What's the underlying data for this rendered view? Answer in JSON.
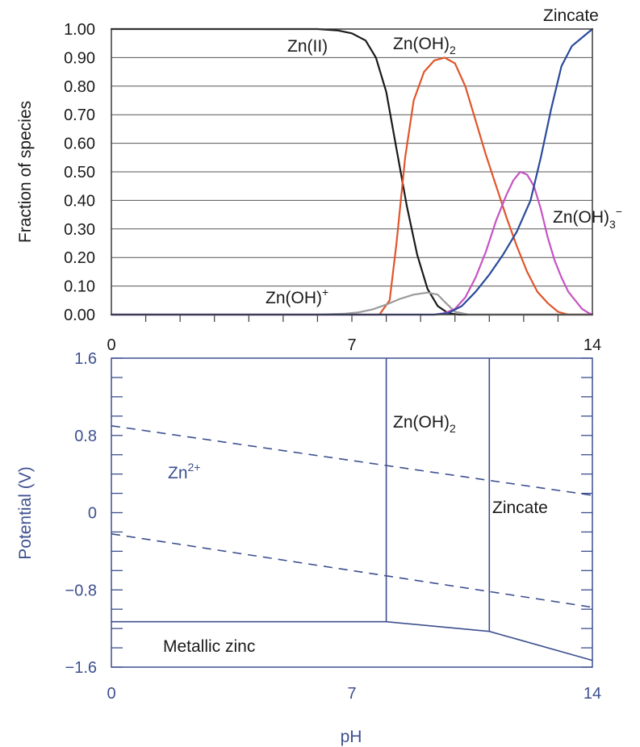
{
  "chart_data": [
    {
      "type": "line",
      "ylabel": "Fraction of species",
      "xlim": [
        0,
        14
      ],
      "ylim": [
        0,
        1
      ],
      "x_ticks": [
        "0",
        "7",
        "14"
      ],
      "y_ticks": [
        "0.00",
        "0.10",
        "0.20",
        "0.30",
        "0.40",
        "0.50",
        "0.60",
        "0.70",
        "0.80",
        "0.90",
        "1.00"
      ],
      "grid": true,
      "series": [
        {
          "name": "Zn(II)",
          "color": "#1a1a1a",
          "x": [
            0,
            5,
            6,
            6.6,
            7,
            7.4,
            7.7,
            8,
            8.3,
            8.6,
            8.9,
            9.2,
            9.5,
            9.8,
            10.1,
            14
          ],
          "y": [
            1,
            1,
            1,
            0.995,
            0.985,
            0.96,
            0.9,
            0.78,
            0.58,
            0.38,
            0.21,
            0.09,
            0.03,
            0.005,
            0,
            0
          ]
        },
        {
          "name": "Zn(OH)2",
          "color": "#e0552b",
          "x": [
            0,
            7.8,
            8.1,
            8.3,
            8.55,
            8.8,
            9.1,
            9.4,
            9.7,
            10,
            10.3,
            10.6,
            10.9,
            11.2,
            11.5,
            11.8,
            12.1,
            12.4,
            12.7,
            13,
            13.3,
            13.5,
            14
          ],
          "y": [
            0,
            0,
            0.05,
            0.25,
            0.55,
            0.75,
            0.85,
            0.89,
            0.9,
            0.88,
            0.8,
            0.68,
            0.56,
            0.45,
            0.34,
            0.24,
            0.15,
            0.08,
            0.04,
            0.01,
            0,
            0,
            0
          ]
        },
        {
          "name": "Zn(OH)+",
          "color": "#9a9a9a",
          "x": [
            0,
            6,
            6.8,
            7.2,
            7.6,
            8,
            8.4,
            8.8,
            9.2,
            9.5,
            9.7,
            10,
            10.4,
            14
          ],
          "y": [
            0,
            0,
            0.003,
            0.008,
            0.018,
            0.035,
            0.055,
            0.07,
            0.077,
            0.07,
            0.045,
            0.01,
            0,
            0
          ]
        },
        {
          "name": "Zn(OH)3−",
          "color": "#c653c2",
          "x": [
            0,
            9.4,
            9.7,
            10,
            10.3,
            10.6,
            10.9,
            11.2,
            11.5,
            11.7,
            11.9,
            12.1,
            12.3,
            12.5,
            12.7,
            12.9,
            13.1,
            13.3,
            13.5,
            13.7,
            13.9,
            14
          ],
          "y": [
            0,
            0,
            0.005,
            0.02,
            0.06,
            0.13,
            0.22,
            0.33,
            0.42,
            0.47,
            0.5,
            0.49,
            0.45,
            0.37,
            0.27,
            0.19,
            0.13,
            0.08,
            0.05,
            0.02,
            0.005,
            0
          ]
        },
        {
          "name": "Zincate",
          "color": "#2a4a9a",
          "x": [
            0,
            9.4,
            9.8,
            10.2,
            10.6,
            11,
            11.4,
            11.8,
            12.2,
            12.5,
            12.8,
            13.1,
            13.4,
            13.7,
            14
          ],
          "y": [
            0,
            0,
            0.005,
            0.03,
            0.08,
            0.14,
            0.21,
            0.29,
            0.4,
            0.55,
            0.72,
            0.87,
            0.94,
            0.97,
            1
          ]
        }
      ],
      "labels": {
        "zn2": "Zn(II)",
        "znoh2_base": "Zn(OH)",
        "znoh2_sub": "2",
        "znoh_base": "Zn(OH)",
        "znoh_sup": "+",
        "znoh3_base": "Zn(OH)",
        "znoh3_sub": "3",
        "znoh3_sup": "−",
        "zincate": "Zincate"
      }
    },
    {
      "type": "line",
      "xlabel": "pH",
      "ylabel": "Potential (V)",
      "xlim": [
        0,
        14
      ],
      "ylim": [
        -1.6,
        1.6
      ],
      "x_ticks": [
        "0",
        "7",
        "14"
      ],
      "y_ticks": [
        "−1.6",
        "−0.8",
        "0",
        "0.8",
        "1.6"
      ],
      "lines": [
        {
          "style": "dashed",
          "x": [
            0,
            14
          ],
          "y": [
            0.9,
            0.18
          ]
        },
        {
          "style": "dashed",
          "x": [
            0,
            14
          ],
          "y": [
            -0.22,
            -0.98
          ]
        },
        {
          "style": "solid",
          "x": [
            0,
            8,
            11,
            14
          ],
          "y": [
            -1.13,
            -1.13,
            -1.23,
            -1.53
          ]
        },
        {
          "style": "solid",
          "x": [
            8,
            8
          ],
          "y": [
            -1.13,
            1.6
          ]
        },
        {
          "style": "solid",
          "x": [
            11,
            11
          ],
          "y": [
            -1.23,
            1.6
          ]
        }
      ],
      "labels": {
        "zn2_base": "Zn",
        "zn2_sup": "2+",
        "znoh2_base": "Zn(OH)",
        "znoh2_sub": "2",
        "zincate": "Zincate",
        "metallic": "Metallic zinc"
      }
    }
  ]
}
